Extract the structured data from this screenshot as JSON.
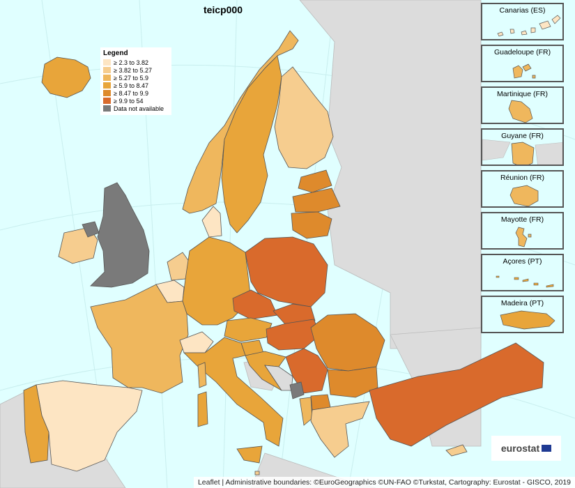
{
  "title": "teicp000",
  "legend": {
    "heading": "Legend",
    "items": [
      {
        "label": "≥ 2.3 to 3.82",
        "color": "#fde5c3"
      },
      {
        "label": "≥ 3.82 to 5.27",
        "color": "#f6cd8f"
      },
      {
        "label": "≥ 5.27 to 5.9",
        "color": "#efb75d"
      },
      {
        "label": "≥ 5.9 to 8.47",
        "color": "#e8a53a"
      },
      {
        "label": "≥ 8.47 to 9.9",
        "color": "#de8a2c"
      },
      {
        "label": "≥ 9.9 to 54",
        "color": "#d96a2c"
      },
      {
        "label": "Data not available",
        "color": "#7a7a7a"
      }
    ]
  },
  "insets": [
    {
      "label": "Canarias (ES)"
    },
    {
      "label": "Guadeloupe (FR)"
    },
    {
      "label": "Martinique (FR)"
    },
    {
      "label": "Guyane (FR)"
    },
    {
      "label": "Réunion (FR)"
    },
    {
      "label": "Mayotte (FR)"
    },
    {
      "label": "Açores (PT)"
    },
    {
      "label": "Madeira (PT)"
    }
  ],
  "logo": "eurostat",
  "attribution": "Leaflet | Administrative boundaries: ©EuroGeographics ©UN-FAO ©Turkstat, Cartography: Eurostat - GISCO, 2019"
}
